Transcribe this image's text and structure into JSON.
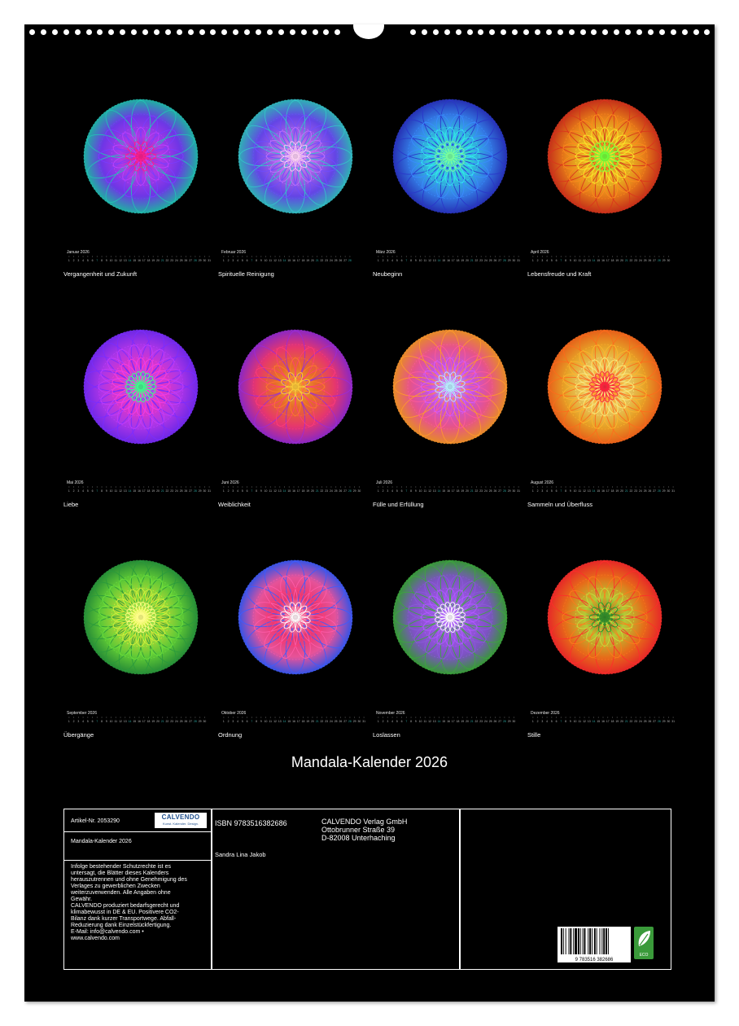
{
  "title": "Mandala-Kalender 2026",
  "months": [
    {
      "label": "Januar 2026",
      "caption": "Vergangenheit und Zukunft",
      "days": 31,
      "colors": [
        "#ff1f8a",
        "#c040ff",
        "#7a3cff",
        "#22c4b4"
      ],
      "petals": 10
    },
    {
      "label": "Februar 2026",
      "caption": "Spirituelle Reinigung",
      "days": 28,
      "colors": [
        "#ffd6f5",
        "#c070ff",
        "#6f4cff",
        "#34c4c8"
      ],
      "petals": 12
    },
    {
      "label": "März 2026",
      "caption": "Neubeginn",
      "days": 31,
      "colors": [
        "#7bff9e",
        "#34e6f0",
        "#3a8cff",
        "#2a36c8"
      ],
      "petals": 14
    },
    {
      "label": "April 2026",
      "caption": "Lebensfreude und Kraft",
      "days": 30,
      "colors": [
        "#6bff3c",
        "#ffe12a",
        "#ff8a1c",
        "#d9341c"
      ],
      "petals": 16
    },
    {
      "label": "Mai 2026",
      "caption": "Liebe",
      "days": 31,
      "colors": [
        "#3cff8c",
        "#ff3cd8",
        "#c03cff",
        "#7a2cff"
      ],
      "petals": 18
    },
    {
      "label": "Juni 2026",
      "caption": "Weiblichkeit",
      "days": 30,
      "colors": [
        "#ffd13c",
        "#ff7a2c",
        "#ff3c7a",
        "#9a2cd8"
      ],
      "petals": 8
    },
    {
      "label": "Juli 2026",
      "caption": "Fülle und Erfüllung",
      "days": 31,
      "colors": [
        "#b8f6ff",
        "#d85cff",
        "#ff5c9a",
        "#ff9a2c"
      ],
      "petals": 12
    },
    {
      "label": "August 2026",
      "caption": "Sammeln und Überfluss",
      "days": 31,
      "colors": [
        "#ff1c3c",
        "#ffe87a",
        "#ffb42c",
        "#ff6a1c"
      ],
      "petals": 16
    },
    {
      "label": "September 2026",
      "caption": "Übergänge",
      "days": 30,
      "colors": [
        "#ffff8a",
        "#d4f03c",
        "#6ae03c",
        "#2a9a3c"
      ],
      "petals": 20
    },
    {
      "label": "Oktober 2026",
      "caption": "Ordnung",
      "days": 31,
      "colors": [
        "#ffffff",
        "#ff3c7a",
        "#ff5caa",
        "#3c5cff"
      ],
      "petals": 12
    },
    {
      "label": "November 2026",
      "caption": "Loslassen",
      "days": 30,
      "colors": [
        "#ffffff",
        "#b05cff",
        "#8a5cd8",
        "#3ca83c"
      ],
      "petals": 16
    },
    {
      "label": "Dezember 2026",
      "caption": "Stille",
      "days": 31,
      "colors": [
        "#2a8a2a",
        "#c8e03c",
        "#ff7a1c",
        "#ff2c2c"
      ],
      "petals": 10
    }
  ],
  "info": {
    "article": "Artikel-Nr.  2053290",
    "logo_text": "CALVENDO",
    "logo_sub": "Kunst. Kalender. Design.",
    "product": "Mandala-Kalender 2026",
    "legal": [
      "Infolge bestehender Schutzrechte ist es",
      "untersagt, die Blätter dieses Kalenders",
      "herauszutrennen und ohne Genehmigung des",
      "Verlages zu gewerblichen Zwecken",
      "weiterzuverwenden. Alle Angaben ohne",
      "Gewähr.",
      "CALVENDO produziert bedarfsgerecht und",
      "klimabewusst in DE & EU. Positivere CO2-",
      "Bilanz dank kurzer Transportwege. Abfall-",
      "Reduzierung dank Einzelstückfertigung.",
      "E-Mail: info@calvendo.com •",
      "www.calvendo.com"
    ],
    "isbn": "ISBN 9783516382686",
    "author": "Sandra Lina Jakob",
    "publisher": [
      "CALVENDO Verlag GmbH",
      "Ottobrunner Straße 39",
      "D-82008 Unterhaching"
    ],
    "barcode_number": "9  783516  382686",
    "eco_label": "ECO"
  },
  "colors": {
    "page_bg": "#000000",
    "text": "#ffffff",
    "calendar_sunday": "#2aa6a0"
  }
}
